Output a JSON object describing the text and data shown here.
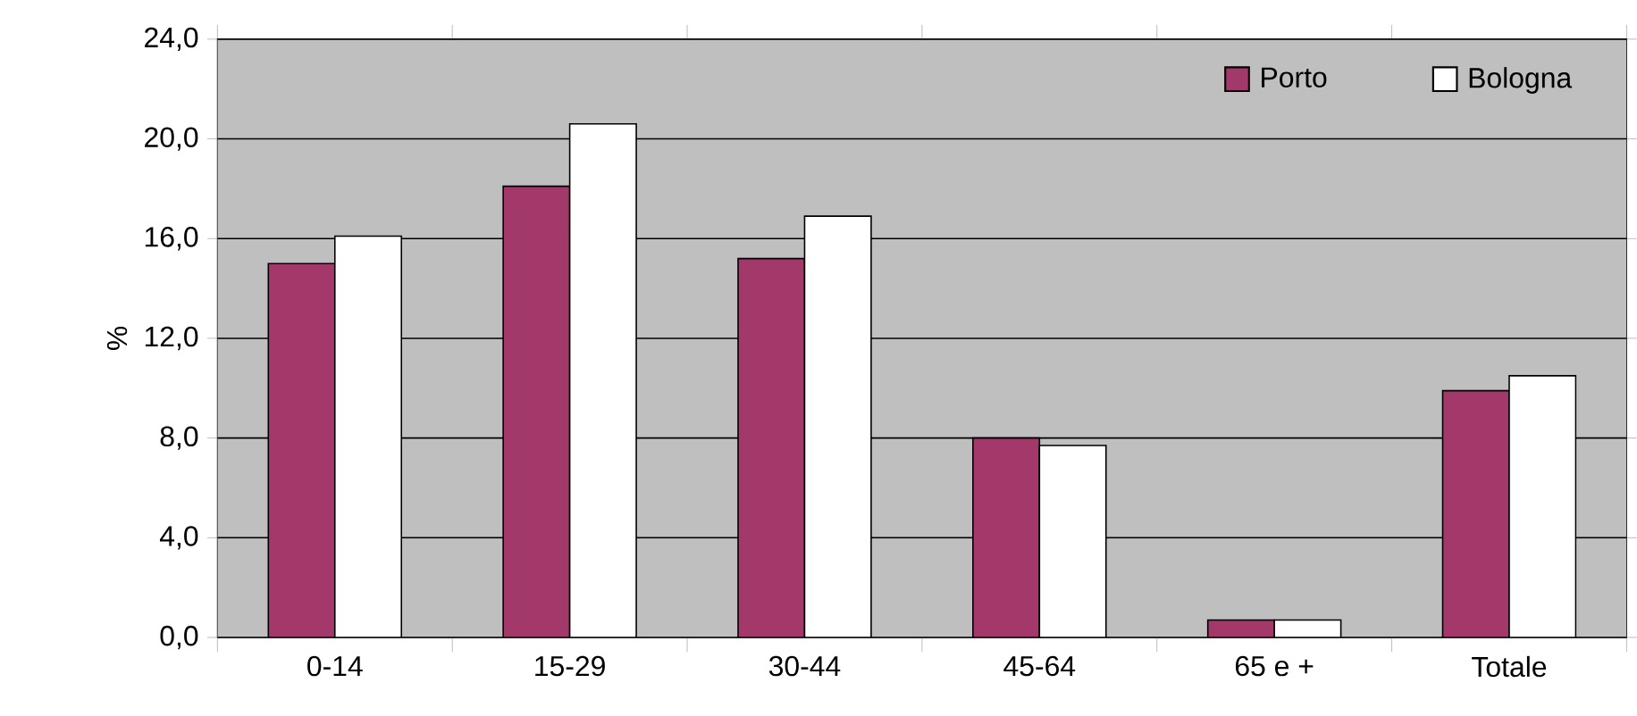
{
  "chart_data": {
    "type": "bar",
    "ylabel": "%",
    "categories": [
      "0-14",
      "15-29",
      "30-44",
      "45-64",
      "65 e +",
      "Totale"
    ],
    "series": [
      {
        "name": "Porto",
        "color": "#a3396b",
        "values": [
          15.0,
          18.1,
          15.2,
          8.0,
          0.7,
          9.9
        ]
      },
      {
        "name": "Bologna",
        "color": "#ffffff",
        "values": [
          16.1,
          20.6,
          16.9,
          7.7,
          0.7,
          10.5
        ]
      }
    ],
    "ylim": [
      0,
      24
    ],
    "yticks": [
      {
        "value": 0,
        "label": "0,0"
      },
      {
        "value": 4,
        "label": "4,0"
      },
      {
        "value": 8,
        "label": "8,0"
      },
      {
        "value": 12,
        "label": "12,0"
      },
      {
        "value": 16,
        "label": "16,0"
      },
      {
        "value": 20,
        "label": "20,0"
      },
      {
        "value": 24,
        "label": "24,0"
      }
    ],
    "grid": "y",
    "legend": "top right"
  }
}
